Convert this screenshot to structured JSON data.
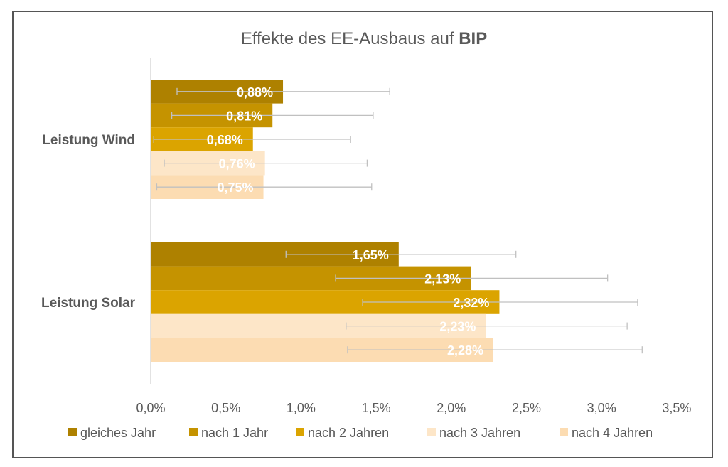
{
  "chart_data": {
    "type": "bar",
    "orientation": "horizontal",
    "title": "Effekte des EE-Ausbaus auf",
    "title_bold": "BIP",
    "xlabel": "",
    "ylabel": "",
    "xlim": [
      0,
      3.5
    ],
    "x_ticks": [
      "0,0%",
      "0,5%",
      "1,0%",
      "1,5%",
      "2,0%",
      "2,5%",
      "3,0%",
      "3,5%"
    ],
    "x_tick_values": [
      0,
      0.5,
      1.0,
      1.5,
      2.0,
      2.5,
      3.0,
      3.5
    ],
    "grid": false,
    "legend_position": "bottom",
    "categories": [
      "Leistung Wind",
      "Leistung Solar"
    ],
    "series": [
      {
        "name": "gleiches Jahr",
        "color": "#AE8100",
        "values": [
          0.88,
          1.65
        ],
        "labels": [
          "0,88%",
          "1,65%"
        ],
        "err_low": [
          0.175,
          0.9
        ],
        "err_high": [
          1.59,
          2.43
        ]
      },
      {
        "name": "nach 1 Jahr",
        "color": "#C59300",
        "values": [
          0.81,
          2.13
        ],
        "labels": [
          "0,81%",
          "2,13%"
        ],
        "err_low": [
          0.14,
          1.23
        ],
        "err_high": [
          1.48,
          3.04
        ]
      },
      {
        "name": "nach 2 Jahren",
        "color": "#DBA400",
        "values": [
          0.68,
          2.32
        ],
        "labels": [
          "0,68%",
          "2,32%"
        ],
        "err_low": [
          0.02,
          1.41
        ],
        "err_high": [
          1.33,
          3.24
        ]
      },
      {
        "name": "nach 3 Jahren",
        "color": "#FDE6C8",
        "values": [
          0.76,
          2.23
        ],
        "labels": [
          "0,76%",
          "2,23%"
        ],
        "err_low": [
          0.09,
          1.3
        ],
        "err_high": [
          1.44,
          3.17
        ]
      },
      {
        "name": "nach 4 Jahren",
        "color": "#FCDCB2",
        "values": [
          0.75,
          2.28
        ],
        "labels": [
          "0,75%",
          "2,28%"
        ],
        "err_low": [
          0.04,
          1.31
        ],
        "err_high": [
          1.47,
          3.27
        ]
      }
    ],
    "colors": {
      "text": "#595959",
      "axis": "#D9D9D9",
      "error_bar": "#C0C0C0",
      "data_label": "#FFFFFF",
      "border": "#555555"
    }
  }
}
